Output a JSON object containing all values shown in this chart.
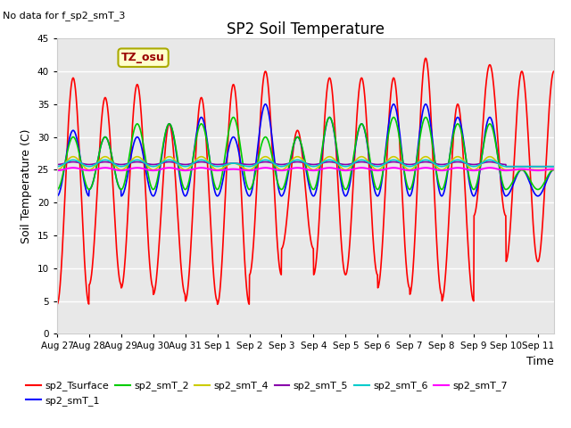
{
  "title": "SP2 Soil Temperature",
  "note": "No data for f_sp2_smT_3",
  "ylabel": "Soil Temperature (C)",
  "xlabel": "Time",
  "tz_label": "TZ_osu",
  "ylim": [
    0,
    45
  ],
  "num_days": 15.5,
  "series": [
    {
      "name": "sp2_Tsurface",
      "color": "#FF0000",
      "max_vals": [
        39,
        36,
        38,
        32,
        36,
        38,
        40,
        31,
        39,
        39,
        39,
        42,
        35,
        41,
        40
      ],
      "min_vals": [
        4.5,
        7.5,
        7,
        6,
        5,
        4.5,
        9,
        13,
        9,
        9,
        7,
        6,
        5,
        18,
        11
      ],
      "lw": 1.2
    },
    {
      "name": "sp2_smT_1",
      "color": "#0000FF",
      "max_vals": [
        31,
        30,
        30,
        32,
        33,
        30,
        35,
        30,
        33,
        32,
        35,
        35,
        33,
        33,
        25
      ],
      "min_vals": [
        21,
        22,
        21,
        21,
        21,
        21,
        21,
        21,
        21,
        21,
        21,
        21,
        21,
        21,
        21
      ],
      "lw": 1.2
    },
    {
      "name": "sp2_smT_2",
      "color": "#00CC00",
      "max_vals": [
        30,
        30,
        32,
        32,
        32,
        33,
        30,
        30,
        33,
        32,
        33,
        33,
        32,
        32,
        25
      ],
      "min_vals": [
        22,
        22,
        22,
        22,
        22,
        22,
        22,
        22,
        22,
        22,
        22,
        22,
        22,
        22,
        22
      ],
      "lw": 1.2
    },
    {
      "name": "sp2_smT_4",
      "color": "#CCCC00",
      "max_vals": [
        27,
        27,
        27,
        27,
        27,
        26,
        27,
        27,
        27,
        27,
        27,
        27,
        27,
        27,
        25
      ],
      "min_vals": [
        25,
        25,
        25,
        25,
        25,
        25,
        25,
        25,
        25,
        25,
        25,
        25,
        25,
        25,
        25
      ],
      "lw": 1.2
    },
    {
      "name": "sp2_smT_5",
      "color": "#8800AA",
      "max_vals": [
        26.2,
        26.2,
        26.2,
        26.2,
        26.2,
        26,
        26.2,
        26.2,
        26.2,
        26.2,
        26.2,
        26.2,
        26.2,
        26.2,
        25.5
      ],
      "min_vals": [
        25.8,
        25.8,
        25.8,
        25.8,
        25.8,
        25.8,
        25.8,
        25.8,
        25.8,
        25.8,
        25.8,
        25.8,
        25.8,
        25.8,
        25.5
      ],
      "lw": 1.2
    },
    {
      "name": "sp2_smT_6",
      "color": "#00CCCC",
      "max_vals": [
        26.5,
        26.5,
        26.5,
        26.5,
        26.5,
        26,
        26.5,
        26.5,
        26.5,
        26.5,
        26.5,
        26.5,
        26.5,
        26.5,
        25.5
      ],
      "min_vals": [
        25.5,
        25.5,
        25.5,
        25.5,
        25.5,
        25.5,
        25.5,
        25.5,
        25.5,
        25.5,
        25.5,
        25.5,
        25.5,
        25.5,
        25.5
      ],
      "lw": 1.2
    },
    {
      "name": "sp2_smT_7",
      "color": "#FF00FF",
      "max_vals": [
        25.3,
        25.3,
        25.3,
        25.3,
        25.3,
        25.1,
        25.3,
        25.3,
        25.3,
        25.3,
        25.3,
        25.3,
        25.3,
        25.3,
        25.1
      ],
      "min_vals": [
        24.9,
        24.9,
        24.9,
        24.9,
        24.9,
        24.9,
        24.9,
        24.9,
        24.9,
        24.9,
        24.9,
        24.9,
        24.9,
        24.9,
        24.9
      ],
      "lw": 1.5
    }
  ],
  "fig_bg": "#FFFFFF",
  "plot_bg": "#E8E8E8",
  "grid_color": "#FFFFFF",
  "xtick_labels": [
    "Aug 27",
    "Aug 28",
    "Aug 29",
    "Aug 30",
    "Aug 31",
    "Sep 1",
    "Sep 2",
    "Sep 3",
    "Sep 4",
    "Sep 5",
    "Sep 6",
    "Sep 7",
    "Sep 8",
    "Sep 9",
    "Sep 10",
    "Sep 11"
  ],
  "xtick_positions": [
    0,
    1,
    2,
    3,
    4,
    5,
    6,
    7,
    8,
    9,
    10,
    11,
    12,
    13,
    14,
    15
  ],
  "samples_per_day": 96
}
